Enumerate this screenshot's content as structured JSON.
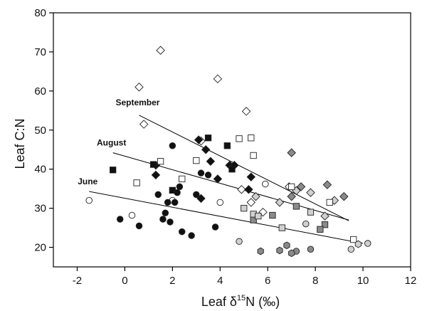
{
  "chart_data": {
    "type": "scatter",
    "title": "",
    "xlabel": {
      "prefix": "Leaf δ",
      "sup": "15",
      "suffix": "N (‰)"
    },
    "ylabel": "Leaf C:N",
    "xlim": [
      -3,
      12
    ],
    "ylim": [
      15,
      80
    ],
    "xticks": [
      -2,
      0,
      2,
      4,
      6,
      8,
      10,
      12
    ],
    "yticks": [
      20,
      30,
      40,
      50,
      60,
      70,
      80
    ],
    "grid": false,
    "regression_lines": [
      {
        "label": "September",
        "x": [
          0.6,
          9.4
        ],
        "y": [
          53.8,
          26.8
        ]
      },
      {
        "label": "August",
        "x": [
          -0.5,
          9.4
        ],
        "y": [
          44.2,
          27.0
        ]
      },
      {
        "label": "June",
        "x": [
          -1.5,
          10.0
        ],
        "y": [
          34.3,
          21.0
        ]
      }
    ],
    "series": [
      {
        "marker": "diamond",
        "fill": "#ffffff",
        "x": [
          0.6,
          0.8,
          1.5,
          3.2,
          3.9,
          5.1,
          4.9,
          5.3,
          5.8,
          6.9
        ],
        "y": [
          61.0,
          51.5,
          70.4,
          47.2,
          63.1,
          54.8,
          34.8,
          31.5,
          29.0,
          35.5
        ]
      },
      {
        "marker": "diamond",
        "fill": "#111111",
        "x": [
          1.3,
          1.3,
          3.1,
          3.2,
          3.4,
          3.6,
          3.9,
          4.4,
          4.6,
          5.2,
          5.3
        ],
        "y": [
          41.0,
          38.5,
          47.5,
          32.5,
          45.0,
          42.0,
          37.5,
          41.0,
          41.0,
          34.8,
          38.0
        ]
      },
      {
        "marker": "diamond",
        "fill": "#8a8a8a",
        "x": [
          7.0,
          7.0,
          7.4,
          8.5,
          9.2
        ],
        "y": [
          44.2,
          33.0,
          35.5,
          36.0,
          33.0
        ]
      },
      {
        "marker": "diamond",
        "fill": "#d0d0d0",
        "x": [
          5.5,
          6.5,
          7.2,
          7.8,
          8.4,
          8.8
        ],
        "y": [
          33.0,
          31.5,
          34.5,
          34.0,
          28.0,
          32.0
        ]
      },
      {
        "marker": "square",
        "fill": "#ffffff",
        "x": [
          0.5,
          1.5,
          2.4,
          3.0,
          4.8,
          5.3,
          5.4,
          7.0,
          8.6,
          9.6
        ],
        "y": [
          36.5,
          42.0,
          37.5,
          42.2,
          47.8,
          48.0,
          43.5,
          35.5,
          31.5,
          22.0
        ]
      },
      {
        "marker": "square",
        "fill": "#111111",
        "x": [
          -0.5,
          1.2,
          2.0,
          3.5,
          4.3,
          4.5
        ],
        "y": [
          39.8,
          41.2,
          34.6,
          48.0,
          46.0,
          40.0
        ]
      },
      {
        "marker": "square",
        "fill": "#8a8a8a",
        "x": [
          5.4,
          6.2,
          7.2,
          8.4,
          8.2
        ],
        "y": [
          27.0,
          28.2,
          30.5,
          25.8,
          24.6
        ]
      },
      {
        "marker": "square",
        "fill": "#d0d0d0",
        "x": [
          5.0,
          5.4,
          5.6,
          6.6,
          7.8
        ],
        "y": [
          30.0,
          28.5,
          28.0,
          25.0,
          29.0
        ]
      },
      {
        "marker": "circle",
        "fill": "#ffffff",
        "x": [
          -1.5,
          0.3,
          2.0,
          4.0,
          5.9
        ],
        "y": [
          32.0,
          28.2,
          32.0,
          31.5,
          36.2
        ]
      },
      {
        "marker": "circle",
        "fill": "#111111",
        "x": [
          -0.2,
          0.6,
          1.4,
          1.6,
          1.7,
          1.8,
          1.9,
          2.0,
          2.1,
          2.2,
          2.3,
          2.4,
          2.8,
          3.0,
          3.2,
          3.5,
          3.8
        ],
        "y": [
          27.2,
          25.5,
          33.5,
          27.2,
          28.8,
          31.5,
          26.5,
          46.0,
          31.5,
          34.0,
          35.5,
          24.0,
          23.0,
          33.5,
          39.0,
          38.5,
          25.2
        ]
      },
      {
        "marker": "circle",
        "fill": "#8a8a8a",
        "x": [
          7.2,
          7.8
        ],
        "y": [
          19.0,
          19.5
        ]
      },
      {
        "marker": "circle",
        "fill": "#d0d0d0",
        "x": [
          4.8,
          7.6,
          9.5,
          10.2
        ],
        "y": [
          21.5,
          26.0,
          19.5,
          21.0
        ]
      },
      {
        "marker": "hexagon",
        "fill": "#8a8a8a",
        "x": [
          5.7,
          6.5,
          6.8,
          7.0
        ],
        "y": [
          19.0,
          19.2,
          20.5,
          18.5
        ]
      },
      {
        "marker": "hexagon",
        "fill": "#d0d0d0",
        "x": [
          9.8
        ],
        "y": [
          20.8
        ]
      }
    ]
  }
}
